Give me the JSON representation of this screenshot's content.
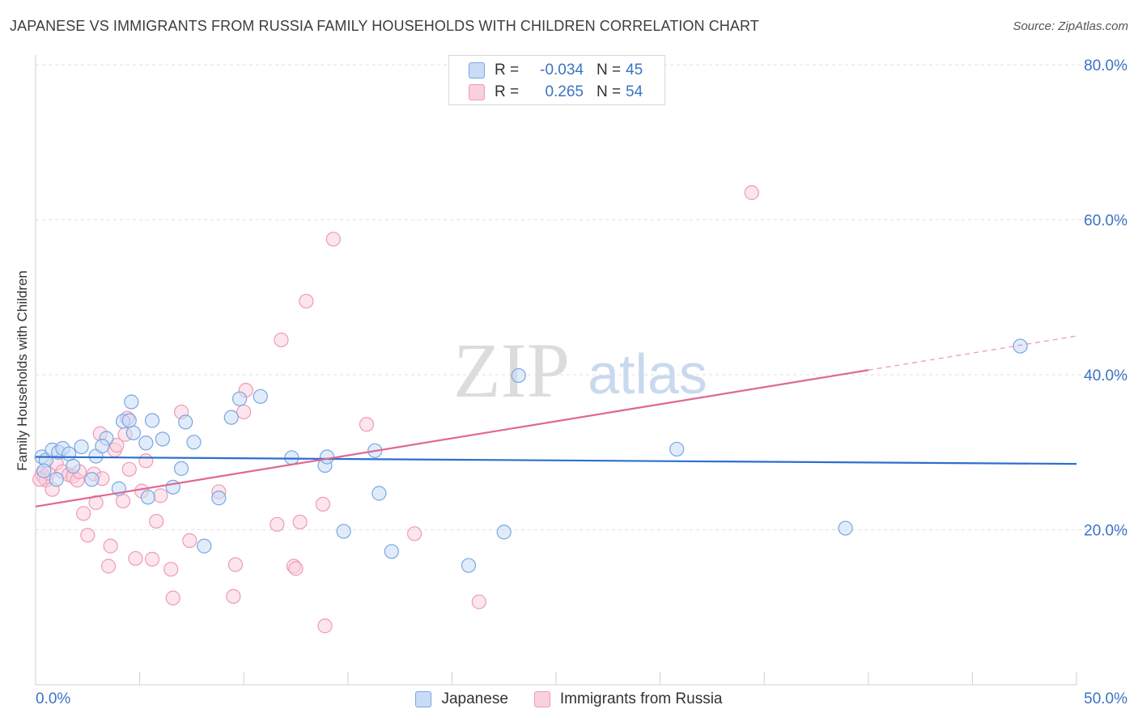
{
  "header": {
    "title": "JAPANESE VS IMMIGRANTS FROM RUSSIA FAMILY HOUSEHOLDS WITH CHILDREN CORRELATION CHART",
    "source": "Source: ZipAtlas.com"
  },
  "watermark": {
    "zip": "ZIP",
    "atlas": "atlas"
  },
  "stats": {
    "series1": {
      "r_label": "R =",
      "r_value": "-0.034",
      "n_label": "N =",
      "n_value": "45"
    },
    "series2": {
      "r_label": "R =",
      "r_value": "0.265",
      "n_label": "N =",
      "n_value": "54"
    }
  },
  "legend": {
    "series1": "Japanese",
    "series2": "Immigrants from Russia"
  },
  "colors": {
    "blue_fill": "#c8dcf8",
    "blue_stroke": "#7aa6e0",
    "blue_line": "#2b6fcf",
    "pink_fill": "#f9d0de",
    "pink_stroke": "#ee9ab6",
    "pink_line": "#e06792",
    "tick_text": "#3b73c6",
    "grid": "#e2e2e2"
  },
  "chart_data": {
    "type": "scatter",
    "title": "JAPANESE VS IMMIGRANTS FROM RUSSIA FAMILY HOUSEHOLDS WITH CHILDREN CORRELATION CHART",
    "xlabel": "",
    "ylabel": "Family Households with Children",
    "xlim": [
      0,
      50
    ],
    "ylim": [
      0,
      80
    ],
    "x_tick_labels": [
      "0.0%",
      "50.0%"
    ],
    "y_ticks": [
      20,
      40,
      60,
      80
    ],
    "y_tick_labels": [
      "20.0%",
      "40.0%",
      "60.0%",
      "80.0%"
    ],
    "grid": true,
    "legend_position": "bottom-center",
    "series": [
      {
        "name": "Japanese",
        "points": [
          [
            0.3,
            29.4
          ],
          [
            0.5,
            29.0
          ],
          [
            0.8,
            30.3
          ],
          [
            1.1,
            30.0
          ],
          [
            1.3,
            30.5
          ],
          [
            1.6,
            29.8
          ],
          [
            2.2,
            30.7
          ],
          [
            2.9,
            29.5
          ],
          [
            1.8,
            28.2
          ],
          [
            3.4,
            31.8
          ],
          [
            3.2,
            30.8
          ],
          [
            2.7,
            26.5
          ],
          [
            4.2,
            34.0
          ],
          [
            4.0,
            25.3
          ],
          [
            4.5,
            34.1
          ],
          [
            4.6,
            36.5
          ],
          [
            4.7,
            32.5
          ],
          [
            5.3,
            31.2
          ],
          [
            5.6,
            34.1
          ],
          [
            5.4,
            24.2
          ],
          [
            6.1,
            31.7
          ],
          [
            6.6,
            25.5
          ],
          [
            7.0,
            27.9
          ],
          [
            7.2,
            33.9
          ],
          [
            7.6,
            31.3
          ],
          [
            8.1,
            17.9
          ],
          [
            8.8,
            24.1
          ],
          [
            9.4,
            34.5
          ],
          [
            9.8,
            36.9
          ],
          [
            10.8,
            37.2
          ],
          [
            12.3,
            29.3
          ],
          [
            13.9,
            28.3
          ],
          [
            14.0,
            29.4
          ],
          [
            14.8,
            19.8
          ],
          [
            16.3,
            30.2
          ],
          [
            16.5,
            24.7
          ],
          [
            17.1,
            17.2
          ],
          [
            20.8,
            15.4
          ],
          [
            22.5,
            19.7
          ],
          [
            23.2,
            39.9
          ],
          [
            30.8,
            30.4
          ],
          [
            38.9,
            20.2
          ],
          [
            47.3,
            43.7
          ],
          [
            0.4,
            27.6
          ],
          [
            1.0,
            26.5
          ]
        ],
        "trend": {
          "x": [
            0,
            50
          ],
          "y": [
            29.4,
            28.5
          ]
        }
      },
      {
        "name": "Immigrants from Russia",
        "points": [
          [
            0.3,
            27.2
          ],
          [
            0.4,
            26.8
          ],
          [
            0.5,
            26.4
          ],
          [
            0.6,
            27.3
          ],
          [
            0.8,
            25.2
          ],
          [
            1.0,
            28.6
          ],
          [
            1.3,
            27.5
          ],
          [
            1.6,
            27.1
          ],
          [
            1.8,
            26.9
          ],
          [
            2.0,
            26.4
          ],
          [
            2.1,
            27.5
          ],
          [
            2.3,
            22.1
          ],
          [
            2.5,
            19.3
          ],
          [
            2.8,
            27.2
          ],
          [
            2.9,
            23.5
          ],
          [
            3.1,
            32.4
          ],
          [
            3.2,
            26.6
          ],
          [
            3.5,
            15.3
          ],
          [
            3.6,
            17.9
          ],
          [
            3.8,
            30.3
          ],
          [
            3.9,
            30.9
          ],
          [
            4.2,
            23.7
          ],
          [
            4.3,
            32.3
          ],
          [
            4.4,
            34.4
          ],
          [
            4.5,
            27.8
          ],
          [
            4.8,
            16.3
          ],
          [
            5.1,
            25.0
          ],
          [
            5.3,
            28.9
          ],
          [
            5.6,
            16.2
          ],
          [
            5.8,
            21.1
          ],
          [
            6.0,
            24.4
          ],
          [
            6.5,
            14.9
          ],
          [
            6.6,
            11.2
          ],
          [
            7.0,
            35.2
          ],
          [
            7.4,
            18.6
          ],
          [
            8.8,
            24.9
          ],
          [
            9.5,
            11.4
          ],
          [
            9.6,
            15.5
          ],
          [
            10.0,
            35.2
          ],
          [
            10.1,
            38.0
          ],
          [
            11.6,
            20.7
          ],
          [
            11.8,
            44.5
          ],
          [
            12.4,
            15.3
          ],
          [
            12.5,
            15.0
          ],
          [
            12.7,
            21.0
          ],
          [
            13.0,
            49.5
          ],
          [
            13.8,
            23.3
          ],
          [
            13.9,
            7.6
          ],
          [
            14.3,
            57.5
          ],
          [
            15.9,
            33.6
          ],
          [
            18.2,
            19.5
          ],
          [
            21.3,
            10.7
          ],
          [
            34.4,
            63.5
          ],
          [
            0.2,
            26.5
          ]
        ],
        "trend": {
          "x": [
            0,
            40
          ],
          "y": [
            23.0,
            40.6
          ]
        },
        "trend_dashed": {
          "x": [
            40,
            50
          ],
          "y": [
            40.6,
            45.0
          ]
        }
      }
    ]
  }
}
